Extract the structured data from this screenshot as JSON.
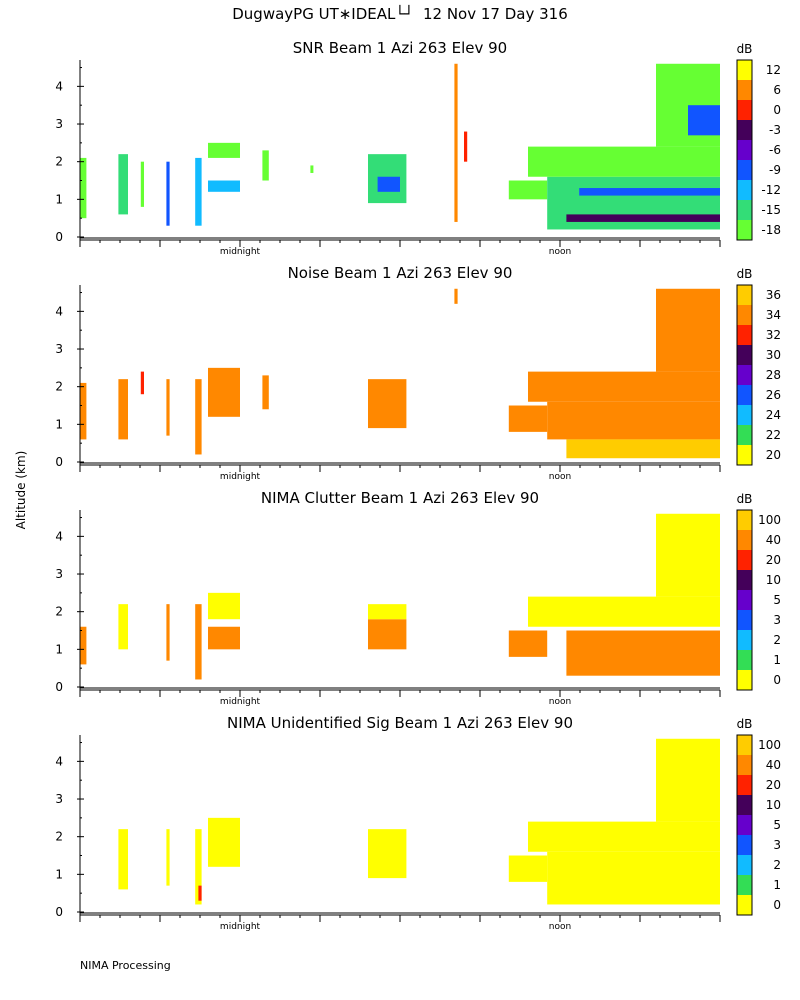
{
  "title": "DugwayPG UT∗IDEAL└┘  12 Nov 17 Day 316",
  "ylabel": "Altitude (km)",
  "footer": "NIMA Processing",
  "chart_data": [
    {
      "type": "heatmap",
      "title": "SNR Beam 1 Azi 263 Elev 90",
      "ylabel": "Altitude (km)",
      "ylim": [
        0,
        4.7
      ],
      "yticks": [
        0,
        1,
        2,
        3,
        4
      ],
      "xtick_labels": [
        "midnight",
        "noon"
      ],
      "colorbar": {
        "unit": "dB",
        "ticks": [
          "-18",
          "-15",
          "-12",
          "-9",
          "-6",
          "-3",
          "0",
          "6",
          "12"
        ],
        "colors": [
          "#66ff33",
          "#33dd77",
          "#11bbff",
          "#1155ff",
          "#6600cc",
          "#44005a",
          "#ff2200",
          "#ff8800",
          "#ffff00"
        ]
      },
      "regions": [
        {
          "x0": 0.0,
          "x1": 0.01,
          "y0": 0.5,
          "y1": 2.1,
          "c": 0
        },
        {
          "x0": 0.06,
          "x1": 0.075,
          "y0": 0.6,
          "y1": 2.2,
          "c": 1
        },
        {
          "x0": 0.095,
          "x1": 0.1,
          "y0": 0.8,
          "y1": 2.0,
          "c": 0
        },
        {
          "x0": 0.135,
          "x1": 0.14,
          "y0": 0.3,
          "y1": 2.0,
          "c": 3
        },
        {
          "x0": 0.18,
          "x1": 0.19,
          "y0": 0.3,
          "y1": 2.1,
          "c": 2
        },
        {
          "x0": 0.2,
          "x1": 0.25,
          "y0": 1.2,
          "y1": 1.5,
          "c": 2
        },
        {
          "x0": 0.2,
          "x1": 0.25,
          "y0": 2.1,
          "y1": 2.5,
          "c": 0
        },
        {
          "x0": 0.285,
          "x1": 0.295,
          "y0": 1.5,
          "y1": 2.3,
          "c": 0
        },
        {
          "x0": 0.36,
          "x1": 0.36,
          "y0": 1.7,
          "y1": 1.9,
          "c": 0
        },
        {
          "x0": 0.45,
          "x1": 0.51,
          "y0": 0.9,
          "y1": 2.2,
          "c": 1
        },
        {
          "x0": 0.465,
          "x1": 0.5,
          "y0": 1.2,
          "y1": 1.6,
          "c": 3
        },
        {
          "x0": 0.585,
          "x1": 0.59,
          "y0": 0.4,
          "y1": 4.6,
          "c": 7
        },
        {
          "x0": 0.6,
          "x1": 0.605,
          "y0": 2.0,
          "y1": 2.8,
          "c": 6
        },
        {
          "x0": 0.67,
          "x1": 0.73,
          "y0": 1.0,
          "y1": 1.5,
          "c": 0
        },
        {
          "x0": 0.73,
          "x1": 1.0,
          "y0": 0.2,
          "y1": 1.6,
          "c": 1
        },
        {
          "x0": 0.76,
          "x1": 1.0,
          "y0": 0.4,
          "y1": 0.6,
          "c": 5
        },
        {
          "x0": 0.78,
          "x1": 1.0,
          "y0": 1.1,
          "y1": 1.3,
          "c": 3
        },
        {
          "x0": 0.7,
          "x1": 1.0,
          "y0": 1.6,
          "y1": 2.4,
          "c": 0
        },
        {
          "x0": 0.9,
          "x1": 1.0,
          "y0": 2.4,
          "y1": 4.6,
          "c": 0
        },
        {
          "x0": 0.95,
          "x1": 1.0,
          "y0": 2.7,
          "y1": 3.5,
          "c": 3
        }
      ]
    },
    {
      "type": "heatmap",
      "title": "Noise Beam 1 Azi 263 Elev 90",
      "ylabel": "Altitude (km)",
      "ylim": [
        0,
        4.7
      ],
      "yticks": [
        0,
        1,
        2,
        3,
        4
      ],
      "xtick_labels": [
        "midnight",
        "noon"
      ],
      "colorbar": {
        "unit": "dB",
        "ticks": [
          "20",
          "22",
          "24",
          "26",
          "28",
          "30",
          "32",
          "34",
          "36"
        ],
        "colors": [
          "#ffff00",
          "#33dd55",
          "#11bbff",
          "#1155ff",
          "#6600cc",
          "#44005a",
          "#ff2200",
          "#ff8800",
          "#ffcc00"
        ]
      },
      "regions": [
        {
          "x0": 0.0,
          "x1": 0.01,
          "y0": 0.6,
          "y1": 2.1,
          "c": 7
        },
        {
          "x0": 0.06,
          "x1": 0.075,
          "y0": 0.6,
          "y1": 2.2,
          "c": 7
        },
        {
          "x0": 0.095,
          "x1": 0.1,
          "y0": 1.8,
          "y1": 2.4,
          "c": 6
        },
        {
          "x0": 0.135,
          "x1": 0.14,
          "y0": 0.7,
          "y1": 2.2,
          "c": 7
        },
        {
          "x0": 0.18,
          "x1": 0.19,
          "y0": 0.2,
          "y1": 2.2,
          "c": 7
        },
        {
          "x0": 0.2,
          "x1": 0.25,
          "y0": 1.2,
          "y1": 2.5,
          "c": 7
        },
        {
          "x0": 0.285,
          "x1": 0.295,
          "y0": 1.4,
          "y1": 2.3,
          "c": 7
        },
        {
          "x0": 0.45,
          "x1": 0.51,
          "y0": 0.9,
          "y1": 2.2,
          "c": 7
        },
        {
          "x0": 0.585,
          "x1": 0.59,
          "y0": 4.2,
          "y1": 4.6,
          "c": 7
        },
        {
          "x0": 0.67,
          "x1": 0.73,
          "y0": 0.8,
          "y1": 1.5,
          "c": 7
        },
        {
          "x0": 0.73,
          "x1": 1.0,
          "y0": 0.6,
          "y1": 1.6,
          "c": 7
        },
        {
          "x0": 0.76,
          "x1": 1.0,
          "y0": 0.1,
          "y1": 0.6,
          "c": 8
        },
        {
          "x0": 0.7,
          "x1": 1.0,
          "y0": 1.6,
          "y1": 2.4,
          "c": 7
        },
        {
          "x0": 0.9,
          "x1": 1.0,
          "y0": 2.4,
          "y1": 4.6,
          "c": 7
        }
      ]
    },
    {
      "type": "heatmap",
      "title": "NIMA Clutter Beam 1 Azi 263 Elev 90",
      "ylabel": "Altitude (km)",
      "ylim": [
        0,
        4.7
      ],
      "yticks": [
        0,
        1,
        2,
        3,
        4
      ],
      "xtick_labels": [
        "midnight",
        "noon"
      ],
      "colorbar": {
        "unit": "dB",
        "ticks": [
          "0",
          "1",
          "2",
          "3",
          "5",
          "10",
          "20",
          "40",
          "100"
        ],
        "colors": [
          "#ffff00",
          "#33dd55",
          "#11bbff",
          "#1155ff",
          "#6600cc",
          "#44005a",
          "#ff2200",
          "#ff8800",
          "#ffcc00"
        ]
      },
      "regions": [
        {
          "x0": 0.0,
          "x1": 0.01,
          "y0": 0.6,
          "y1": 1.6,
          "c": 7
        },
        {
          "x0": 0.06,
          "x1": 0.075,
          "y0": 1.0,
          "y1": 2.2,
          "c": 0
        },
        {
          "x0": 0.135,
          "x1": 0.14,
          "y0": 0.7,
          "y1": 2.2,
          "c": 7
        },
        {
          "x0": 0.18,
          "x1": 0.19,
          "y0": 0.2,
          "y1": 2.2,
          "c": 7
        },
        {
          "x0": 0.2,
          "x1": 0.25,
          "y0": 1.0,
          "y1": 1.6,
          "c": 7
        },
        {
          "x0": 0.2,
          "x1": 0.25,
          "y0": 1.8,
          "y1": 2.5,
          "c": 0
        },
        {
          "x0": 0.45,
          "x1": 0.51,
          "y0": 1.0,
          "y1": 1.8,
          "c": 7
        },
        {
          "x0": 0.45,
          "x1": 0.51,
          "y0": 1.8,
          "y1": 2.2,
          "c": 0
        },
        {
          "x0": 0.67,
          "x1": 0.73,
          "y0": 0.8,
          "y1": 1.5,
          "c": 7
        },
        {
          "x0": 0.76,
          "x1": 1.0,
          "y0": 0.3,
          "y1": 1.5,
          "c": 7
        },
        {
          "x0": 0.7,
          "x1": 1.0,
          "y0": 1.6,
          "y1": 2.4,
          "c": 0
        },
        {
          "x0": 0.9,
          "x1": 1.0,
          "y0": 2.4,
          "y1": 4.6,
          "c": 0
        }
      ]
    },
    {
      "type": "heatmap",
      "title": "NIMA Unidentified Sig Beam 1 Azi 263 Elev 90",
      "ylabel": "Altitude (km)",
      "ylim": [
        0,
        4.7
      ],
      "yticks": [
        0,
        1,
        2,
        3,
        4
      ],
      "xtick_labels": [
        "midnight",
        "noon"
      ],
      "colorbar": {
        "unit": "dB",
        "ticks": [
          "0",
          "1",
          "2",
          "3",
          "5",
          "10",
          "20",
          "40",
          "100"
        ],
        "colors": [
          "#ffff00",
          "#33dd55",
          "#11bbff",
          "#1155ff",
          "#6600cc",
          "#44005a",
          "#ff2200",
          "#ff8800",
          "#ffcc00"
        ]
      },
      "regions": [
        {
          "x0": 0.06,
          "x1": 0.075,
          "y0": 0.6,
          "y1": 2.2,
          "c": 0
        },
        {
          "x0": 0.135,
          "x1": 0.14,
          "y0": 0.7,
          "y1": 2.2,
          "c": 0
        },
        {
          "x0": 0.18,
          "x1": 0.19,
          "y0": 0.2,
          "y1": 2.2,
          "c": 0
        },
        {
          "x0": 0.2,
          "x1": 0.25,
          "y0": 1.2,
          "y1": 2.5,
          "c": 0
        },
        {
          "x0": 0.45,
          "x1": 0.51,
          "y0": 0.9,
          "y1": 2.2,
          "c": 0
        },
        {
          "x0": 0.67,
          "x1": 0.73,
          "y0": 0.8,
          "y1": 1.5,
          "c": 0
        },
        {
          "x0": 0.73,
          "x1": 1.0,
          "y0": 0.2,
          "y1": 1.6,
          "c": 0
        },
        {
          "x0": 0.7,
          "x1": 1.0,
          "y0": 1.6,
          "y1": 2.4,
          "c": 0
        },
        {
          "x0": 0.9,
          "x1": 1.0,
          "y0": 2.4,
          "y1": 4.6,
          "c": 0
        },
        {
          "x0": 0.185,
          "x1": 0.19,
          "y0": 0.3,
          "y1": 0.7,
          "c": 6
        }
      ]
    }
  ]
}
